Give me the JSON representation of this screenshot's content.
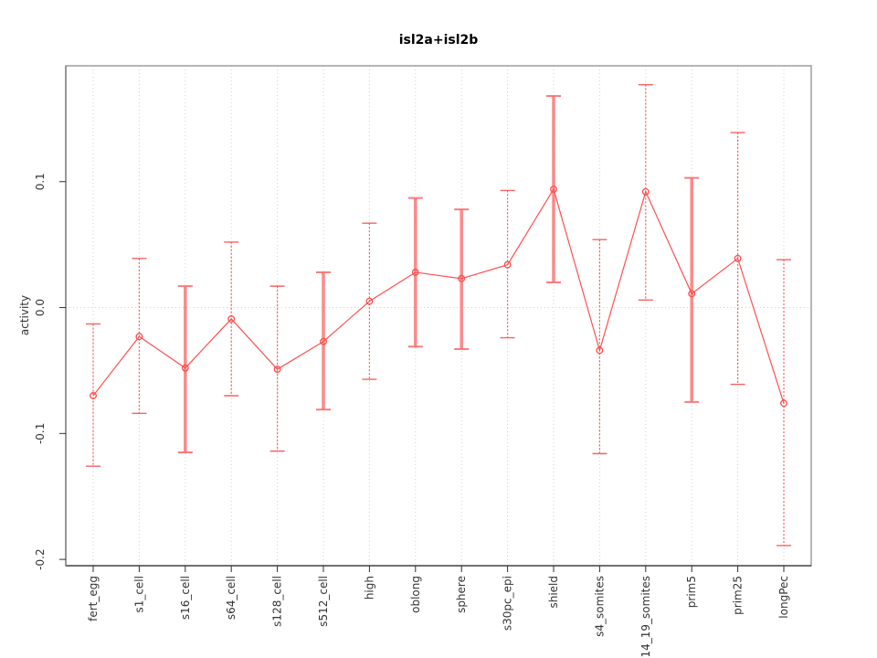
{
  "title": "isl2a+isl2b",
  "chart_data": {
    "type": "line",
    "title": "isl2a+isl2b",
    "xlabel": "",
    "ylabel": "activity",
    "categories": [
      "fert_egg",
      "s1_cell",
      "s16_cell",
      "s64_cell",
      "s128_cell",
      "s512_cell",
      "high",
      "oblong",
      "sphere",
      "s30pc_epi",
      "shield",
      "s4_somites",
      "s14_19_somites",
      "prim5",
      "prim25",
      "longPec"
    ],
    "series": [
      {
        "name": "activity",
        "values": [
          -0.07,
          -0.023,
          -0.048,
          -0.009,
          -0.049,
          -0.027,
          0.005,
          0.028,
          0.023,
          0.034,
          0.094,
          -0.034,
          0.092,
          0.011,
          0.039,
          -0.076
        ],
        "upper": [
          -0.013,
          0.039,
          0.017,
          0.052,
          0.017,
          0.028,
          0.067,
          0.087,
          0.078,
          0.093,
          0.168,
          0.054,
          0.177,
          0.103,
          0.139,
          0.038
        ],
        "lower": [
          -0.126,
          -0.084,
          -0.115,
          -0.07,
          -0.114,
          -0.081,
          -0.057,
          -0.031,
          -0.033,
          -0.024,
          0.02,
          -0.116,
          0.006,
          -0.075,
          -0.061,
          -0.189
        ]
      }
    ],
    "bar_styles": [
      "dashed",
      "dashed",
      "thick",
      "dashed",
      "dashed",
      "thick",
      "dashed",
      "thick",
      "thick",
      "dashed",
      "thick",
      "dashed",
      "dashed",
      "thick",
      "dashed",
      "dashed"
    ],
    "ylim": [
      -0.205,
      0.192
    ],
    "yticks": [
      0.1,
      0.0,
      -0.1,
      -0.2
    ],
    "ytick_labels": [
      "0.1",
      "0.0",
      "-0.1",
      "-0.2"
    ],
    "grid": "vertical dotted line at each category, horizontal dotted line at 0",
    "legend": "none",
    "marker": "open-circle",
    "colors": {
      "line": "#ff5050",
      "marker": "#ff4d4d",
      "error_bar_thin": "#fa5050",
      "error_bar_thick": "#fc6e6e",
      "grid": "#d2d2d2",
      "box": "#8f8f8f",
      "axis": "#2f2f2f",
      "tick_text": "#333333",
      "title_text": "#000000"
    }
  }
}
